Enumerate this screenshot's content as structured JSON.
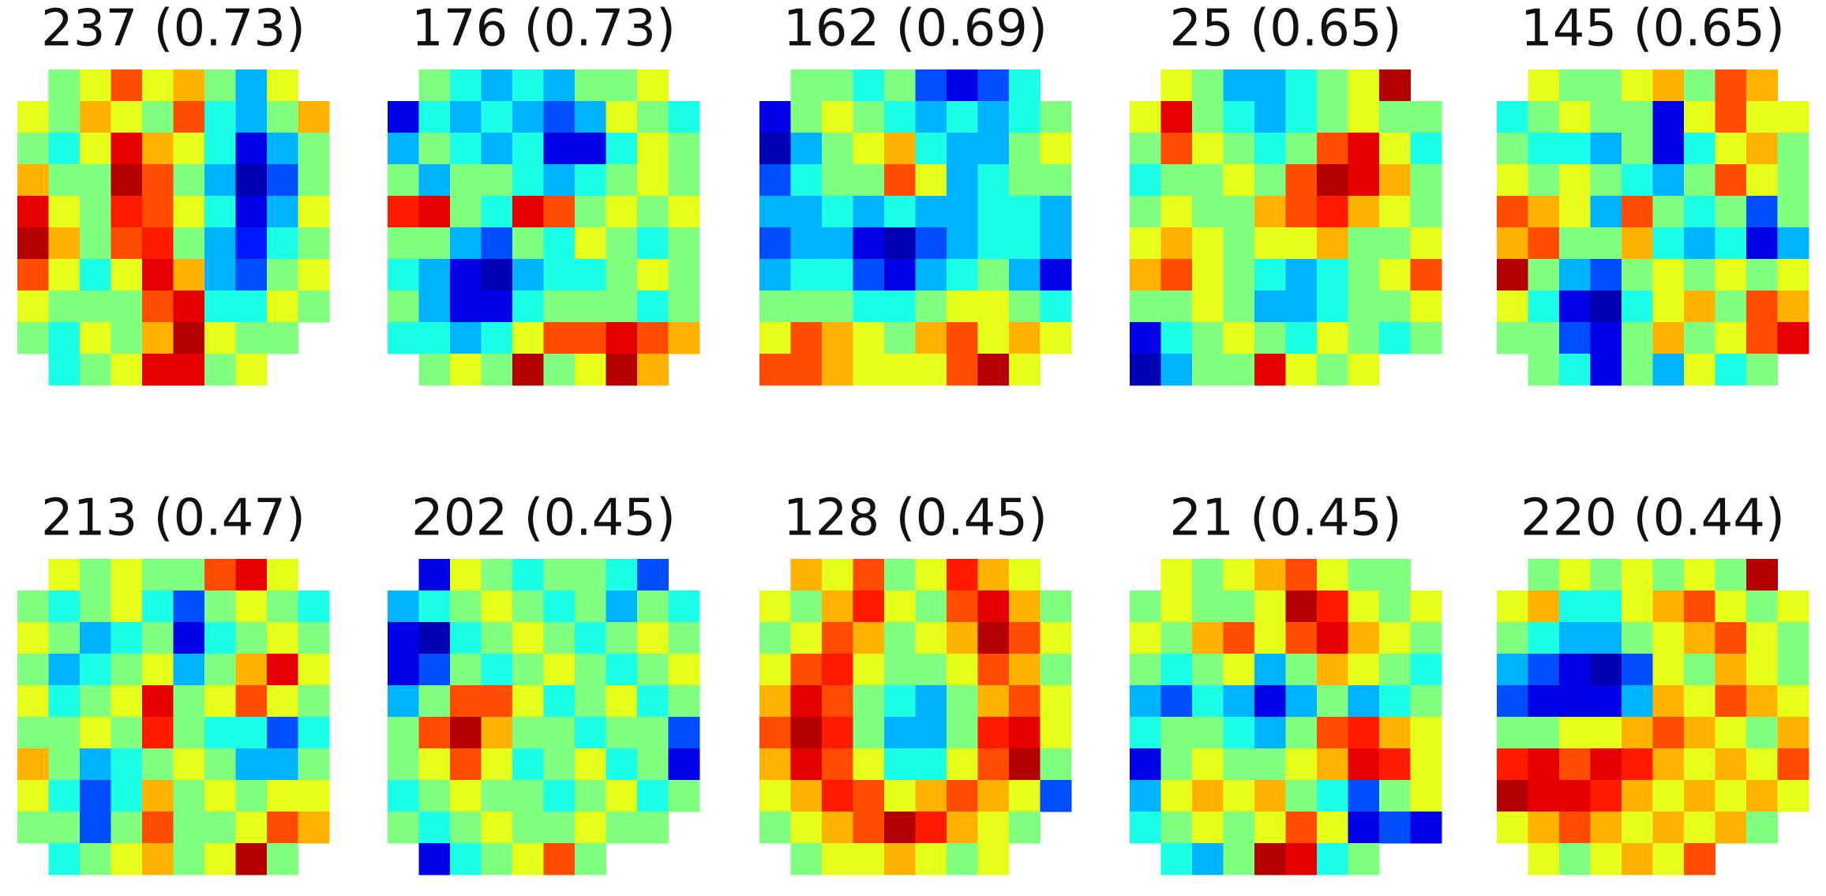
{
  "chart_data": [
    {
      "type": "heatmap",
      "title": "237 (0.73)",
      "cmap": "jet",
      "clim": [
        0,
        1
      ],
      "values": [
        [
          null,
          0.5,
          0.6,
          0.8,
          0.6,
          0.7,
          0.5,
          0.3,
          0.6,
          null
        ],
        [
          0.6,
          0.5,
          0.7,
          0.6,
          0.5,
          0.8,
          0.4,
          0.3,
          0.5,
          0.7
        ],
        [
          0.5,
          0.4,
          0.6,
          0.9,
          0.7,
          0.6,
          0.4,
          0.1,
          0.3,
          0.5
        ],
        [
          0.7,
          0.5,
          0.5,
          0.95,
          0.8,
          0.5,
          0.3,
          0.05,
          0.2,
          0.5
        ],
        [
          0.9,
          0.6,
          0.5,
          0.85,
          0.8,
          0.6,
          0.4,
          0.1,
          0.3,
          0.6
        ],
        [
          0.95,
          0.7,
          0.5,
          0.8,
          0.85,
          0.5,
          0.3,
          0.15,
          0.4,
          0.5
        ],
        [
          0.8,
          0.6,
          0.4,
          0.6,
          0.9,
          0.7,
          0.3,
          0.2,
          0.5,
          0.6
        ],
        [
          0.6,
          0.5,
          0.5,
          0.5,
          0.8,
          0.9,
          0.4,
          0.4,
          0.6,
          0.5
        ],
        [
          0.5,
          0.4,
          0.6,
          0.5,
          0.7,
          0.95,
          0.6,
          0.5,
          0.5,
          null
        ],
        [
          null,
          0.4,
          0.5,
          0.6,
          0.9,
          0.9,
          0.5,
          0.6,
          null,
          null
        ]
      ]
    },
    {
      "type": "heatmap",
      "title": "176 (0.73)",
      "cmap": "jet",
      "clim": [
        0,
        1
      ],
      "values": [
        [
          null,
          0.5,
          0.4,
          0.3,
          0.4,
          0.3,
          0.5,
          0.5,
          0.6,
          null
        ],
        [
          0.1,
          0.4,
          0.3,
          0.4,
          0.3,
          0.2,
          0.3,
          0.6,
          0.5,
          0.4
        ],
        [
          0.3,
          0.5,
          0.4,
          0.3,
          0.4,
          0.1,
          0.1,
          0.4,
          0.6,
          0.5
        ],
        [
          0.5,
          0.3,
          0.5,
          0.5,
          0.4,
          0.3,
          0.4,
          0.5,
          0.6,
          0.5
        ],
        [
          0.85,
          0.9,
          0.5,
          0.4,
          0.9,
          0.8,
          0.5,
          0.6,
          0.5,
          0.6
        ],
        [
          0.5,
          0.5,
          0.3,
          0.2,
          0.5,
          0.4,
          0.6,
          0.5,
          0.4,
          0.5
        ],
        [
          0.4,
          0.3,
          0.1,
          0.05,
          0.3,
          0.4,
          0.4,
          0.5,
          0.6,
          0.5
        ],
        [
          0.5,
          0.3,
          0.1,
          0.1,
          0.4,
          0.5,
          0.5,
          0.5,
          0.4,
          0.5
        ],
        [
          0.4,
          0.4,
          0.3,
          0.4,
          0.6,
          0.8,
          0.8,
          0.9,
          0.8,
          0.7
        ],
        [
          null,
          0.5,
          0.6,
          0.5,
          0.95,
          0.5,
          0.6,
          0.95,
          0.7,
          null
        ]
      ]
    },
    {
      "type": "heatmap",
      "title": "162 (0.69)",
      "cmap": "jet",
      "clim": [
        0,
        1
      ],
      "values": [
        [
          null,
          0.5,
          0.5,
          0.4,
          0.5,
          0.2,
          0.1,
          0.2,
          0.4,
          null
        ],
        [
          0.1,
          0.5,
          0.6,
          0.5,
          0.4,
          0.3,
          0.4,
          0.3,
          0.4,
          0.5
        ],
        [
          0.05,
          0.3,
          0.5,
          0.6,
          0.7,
          0.4,
          0.3,
          0.3,
          0.5,
          0.6
        ],
        [
          0.2,
          0.4,
          0.5,
          0.5,
          0.8,
          0.6,
          0.3,
          0.4,
          0.5,
          0.5
        ],
        [
          0.3,
          0.3,
          0.4,
          0.3,
          0.4,
          0.3,
          0.3,
          0.4,
          0.4,
          0.3
        ],
        [
          0.2,
          0.3,
          0.3,
          0.1,
          0.05,
          0.2,
          0.3,
          0.4,
          0.4,
          0.3
        ],
        [
          0.3,
          0.4,
          0.4,
          0.2,
          0.1,
          0.3,
          0.4,
          0.5,
          0.3,
          0.1
        ],
        [
          0.5,
          0.5,
          0.5,
          0.4,
          0.4,
          0.5,
          0.6,
          0.6,
          0.5,
          0.4
        ],
        [
          0.6,
          0.8,
          0.7,
          0.6,
          0.5,
          0.7,
          0.8,
          0.6,
          0.7,
          0.6
        ],
        [
          0.8,
          0.8,
          0.7,
          0.6,
          0.6,
          0.6,
          0.8,
          0.95,
          0.6,
          null
        ]
      ]
    },
    {
      "type": "heatmap",
      "title": "25 (0.65)",
      "cmap": "jet",
      "clim": [
        0,
        1
      ],
      "values": [
        [
          null,
          0.6,
          0.5,
          0.3,
          0.3,
          0.4,
          0.5,
          0.6,
          0.95,
          null
        ],
        [
          0.6,
          0.9,
          0.5,
          0.4,
          0.3,
          0.4,
          0.5,
          0.6,
          0.5,
          0.5
        ],
        [
          0.5,
          0.8,
          0.6,
          0.5,
          0.4,
          0.5,
          0.8,
          0.9,
          0.6,
          0.4
        ],
        [
          0.4,
          0.5,
          0.5,
          0.6,
          0.5,
          0.8,
          0.95,
          0.9,
          0.7,
          0.5
        ],
        [
          0.5,
          0.6,
          0.5,
          0.5,
          0.7,
          0.8,
          0.85,
          0.7,
          0.6,
          0.5
        ],
        [
          0.6,
          0.7,
          0.6,
          0.5,
          0.6,
          0.6,
          0.7,
          0.5,
          0.5,
          0.6
        ],
        [
          0.7,
          0.8,
          0.6,
          0.5,
          0.4,
          0.3,
          0.4,
          0.5,
          0.6,
          0.8
        ],
        [
          0.5,
          0.5,
          0.6,
          0.5,
          0.3,
          0.3,
          0.4,
          0.5,
          0.5,
          0.6
        ],
        [
          0.1,
          0.4,
          0.5,
          0.6,
          0.5,
          0.4,
          0.6,
          0.5,
          0.4,
          0.5
        ],
        [
          0.05,
          0.3,
          0.5,
          0.5,
          0.9,
          0.6,
          0.5,
          0.6,
          null,
          null
        ]
      ]
    },
    {
      "type": "heatmap",
      "title": "145 (0.65)",
      "cmap": "jet",
      "clim": [
        0,
        1
      ],
      "values": [
        [
          null,
          0.6,
          0.5,
          0.5,
          0.6,
          0.7,
          0.5,
          0.8,
          0.7,
          null
        ],
        [
          0.4,
          0.5,
          0.6,
          0.5,
          0.5,
          0.1,
          0.6,
          0.8,
          0.6,
          0.6
        ],
        [
          0.5,
          0.4,
          0.4,
          0.3,
          0.5,
          0.1,
          0.4,
          0.6,
          0.7,
          0.5
        ],
        [
          0.6,
          0.5,
          0.6,
          0.5,
          0.4,
          0.3,
          0.5,
          0.8,
          0.6,
          0.5
        ],
        [
          0.8,
          0.7,
          0.6,
          0.3,
          0.8,
          0.5,
          0.4,
          0.5,
          0.2,
          0.5
        ],
        [
          0.7,
          0.8,
          0.5,
          0.5,
          0.7,
          0.4,
          0.3,
          0.4,
          0.1,
          0.3
        ],
        [
          0.95,
          0.5,
          0.3,
          0.2,
          0.5,
          0.6,
          0.5,
          0.6,
          0.5,
          0.6
        ],
        [
          0.6,
          0.4,
          0.1,
          0.05,
          0.4,
          0.6,
          0.7,
          0.5,
          0.8,
          0.7
        ],
        [
          0.5,
          0.5,
          0.2,
          0.1,
          0.5,
          0.7,
          0.5,
          0.6,
          0.8,
          0.9
        ],
        [
          null,
          0.5,
          0.4,
          0.1,
          0.5,
          0.3,
          0.6,
          0.4,
          0.5,
          null
        ]
      ]
    },
    {
      "type": "heatmap",
      "title": "213 (0.47)",
      "cmap": "jet",
      "clim": [
        0,
        1
      ],
      "values": [
        [
          null,
          0.6,
          0.5,
          0.6,
          0.5,
          0.5,
          0.8,
          0.9,
          0.6,
          null
        ],
        [
          0.5,
          0.4,
          0.5,
          0.6,
          0.4,
          0.2,
          0.5,
          0.6,
          0.5,
          0.4
        ],
        [
          0.6,
          0.5,
          0.3,
          0.4,
          0.5,
          0.1,
          0.4,
          0.5,
          0.6,
          0.5
        ],
        [
          0.5,
          0.3,
          0.4,
          0.5,
          0.6,
          0.3,
          0.5,
          0.7,
          0.9,
          0.6
        ],
        [
          0.6,
          0.4,
          0.5,
          0.6,
          0.9,
          0.5,
          0.6,
          0.8,
          0.6,
          0.5
        ],
        [
          0.5,
          0.5,
          0.6,
          0.5,
          0.85,
          0.5,
          0.4,
          0.4,
          0.2,
          0.4
        ],
        [
          0.7,
          0.5,
          0.3,
          0.4,
          0.5,
          0.6,
          0.5,
          0.3,
          0.3,
          0.5
        ],
        [
          0.6,
          0.4,
          0.2,
          0.4,
          0.7,
          0.5,
          0.6,
          0.5,
          0.6,
          0.6
        ],
        [
          0.5,
          0.5,
          0.2,
          0.5,
          0.8,
          0.5,
          0.5,
          0.6,
          0.8,
          0.7
        ],
        [
          null,
          0.4,
          0.5,
          0.6,
          0.7,
          0.5,
          0.6,
          0.95,
          0.5,
          null
        ]
      ]
    },
    {
      "type": "heatmap",
      "title": "202 (0.45)",
      "cmap": "jet",
      "clim": [
        0,
        1
      ],
      "values": [
        [
          null,
          0.1,
          0.6,
          0.5,
          0.4,
          0.5,
          0.5,
          0.4,
          0.2,
          null
        ],
        [
          0.3,
          0.4,
          0.5,
          0.6,
          0.5,
          0.4,
          0.5,
          0.3,
          0.5,
          0.4
        ],
        [
          0.1,
          0.05,
          0.4,
          0.5,
          0.6,
          0.5,
          0.4,
          0.5,
          0.6,
          0.5
        ],
        [
          0.1,
          0.2,
          0.5,
          0.4,
          0.5,
          0.6,
          0.5,
          0.4,
          0.5,
          0.6
        ],
        [
          0.3,
          0.5,
          0.8,
          0.8,
          0.6,
          0.4,
          0.5,
          0.6,
          0.4,
          0.5
        ],
        [
          0.5,
          0.8,
          0.95,
          0.7,
          0.5,
          0.5,
          0.4,
          0.5,
          0.5,
          0.2
        ],
        [
          0.5,
          0.6,
          0.8,
          0.6,
          0.4,
          0.5,
          0.6,
          0.4,
          0.5,
          0.1
        ],
        [
          0.4,
          0.5,
          0.6,
          0.5,
          0.5,
          0.4,
          0.5,
          0.6,
          0.4,
          0.5
        ],
        [
          0.5,
          0.4,
          0.5,
          0.6,
          0.5,
          0.5,
          0.6,
          0.5,
          0.5,
          null
        ],
        [
          null,
          0.1,
          0.4,
          0.5,
          0.6,
          0.8,
          0.5,
          null,
          null,
          null
        ]
      ]
    },
    {
      "type": "heatmap",
      "title": "128 (0.45)",
      "cmap": "jet",
      "clim": [
        0,
        1
      ],
      "values": [
        [
          null,
          0.7,
          0.6,
          0.8,
          0.5,
          0.6,
          0.85,
          0.7,
          0.6,
          null
        ],
        [
          0.6,
          0.5,
          0.7,
          0.85,
          0.6,
          0.5,
          0.8,
          0.9,
          0.7,
          0.5
        ],
        [
          0.5,
          0.6,
          0.8,
          0.7,
          0.5,
          0.6,
          0.7,
          0.95,
          0.8,
          0.6
        ],
        [
          0.6,
          0.8,
          0.85,
          0.6,
          0.5,
          0.5,
          0.6,
          0.8,
          0.7,
          0.5
        ],
        [
          0.7,
          0.9,
          0.8,
          0.5,
          0.4,
          0.3,
          0.5,
          0.7,
          0.8,
          0.6
        ],
        [
          0.8,
          0.95,
          0.85,
          0.5,
          0.3,
          0.3,
          0.5,
          0.85,
          0.9,
          0.6
        ],
        [
          0.7,
          0.9,
          0.8,
          0.6,
          0.4,
          0.4,
          0.6,
          0.8,
          0.95,
          0.5
        ],
        [
          0.6,
          0.7,
          0.85,
          0.8,
          0.6,
          0.7,
          0.8,
          0.7,
          0.6,
          0.2
        ],
        [
          0.5,
          0.6,
          0.7,
          0.8,
          0.95,
          0.85,
          0.7,
          0.6,
          0.5,
          null
        ],
        [
          null,
          0.5,
          0.6,
          0.6,
          0.7,
          0.6,
          0.5,
          0.6,
          null,
          null
        ]
      ]
    },
    {
      "type": "heatmap",
      "title": "21 (0.45)",
      "cmap": "jet",
      "clim": [
        0,
        1
      ],
      "values": [
        [
          null,
          0.6,
          0.5,
          0.6,
          0.7,
          0.8,
          0.6,
          0.5,
          0.5,
          null
        ],
        [
          0.5,
          0.6,
          0.5,
          0.5,
          0.6,
          0.95,
          0.85,
          0.6,
          0.5,
          0.6
        ],
        [
          0.6,
          0.5,
          0.7,
          0.8,
          0.6,
          0.8,
          0.9,
          0.7,
          0.6,
          0.5
        ],
        [
          0.5,
          0.4,
          0.5,
          0.6,
          0.3,
          0.5,
          0.7,
          0.6,
          0.5,
          0.4
        ],
        [
          0.3,
          0.2,
          0.4,
          0.3,
          0.1,
          0.3,
          0.5,
          0.3,
          0.4,
          0.5
        ],
        [
          0.4,
          0.5,
          0.5,
          0.4,
          0.3,
          0.5,
          0.8,
          0.85,
          0.7,
          0.6
        ],
        [
          0.1,
          0.5,
          0.6,
          0.5,
          0.5,
          0.6,
          0.7,
          0.9,
          0.85,
          0.6
        ],
        [
          0.3,
          0.6,
          0.7,
          0.6,
          0.7,
          0.5,
          0.4,
          0.2,
          0.5,
          0.6
        ],
        [
          0.4,
          0.5,
          0.6,
          0.5,
          0.6,
          0.8,
          0.6,
          0.1,
          0.2,
          0.1
        ],
        [
          null,
          0.4,
          0.3,
          0.5,
          0.95,
          0.9,
          0.4,
          0.5,
          null,
          null
        ]
      ]
    },
    {
      "type": "heatmap",
      "title": "220 (0.44)",
      "cmap": "jet",
      "clim": [
        0,
        1
      ],
      "values": [
        [
          null,
          0.5,
          0.6,
          0.5,
          0.6,
          0.5,
          0.6,
          0.5,
          0.95,
          null
        ],
        [
          0.6,
          0.7,
          0.4,
          0.4,
          0.6,
          0.7,
          0.8,
          0.6,
          0.5,
          0.6
        ],
        [
          0.5,
          0.4,
          0.3,
          0.3,
          0.5,
          0.6,
          0.7,
          0.8,
          0.6,
          0.5
        ],
        [
          0.3,
          0.2,
          0.1,
          0.05,
          0.2,
          0.6,
          0.5,
          0.7,
          0.6,
          0.5
        ],
        [
          0.2,
          0.1,
          0.1,
          0.1,
          0.3,
          0.7,
          0.6,
          0.8,
          0.7,
          0.6
        ],
        [
          0.5,
          0.5,
          0.6,
          0.6,
          0.7,
          0.8,
          0.7,
          0.6,
          0.5,
          0.7
        ],
        [
          0.85,
          0.9,
          0.8,
          0.9,
          0.85,
          0.7,
          0.6,
          0.7,
          0.6,
          0.8
        ],
        [
          0.95,
          0.9,
          0.9,
          0.85,
          0.7,
          0.6,
          0.7,
          0.6,
          0.7,
          0.6
        ],
        [
          0.6,
          0.7,
          0.8,
          0.7,
          0.6,
          0.7,
          0.6,
          0.7,
          0.5,
          null
        ],
        [
          null,
          0.6,
          0.5,
          0.6,
          0.7,
          0.6,
          0.8,
          null,
          null,
          null
        ]
      ]
    }
  ]
}
